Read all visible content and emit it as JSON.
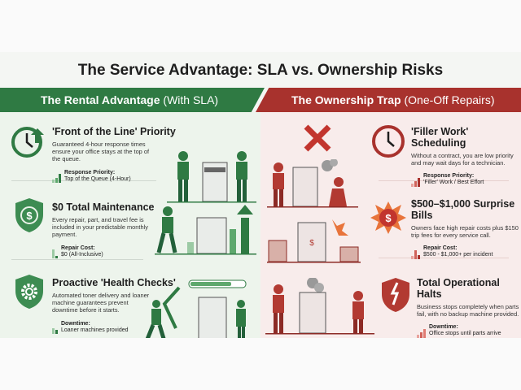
{
  "title": "The Service Advantage: SLA vs. Ownership Risks",
  "colors": {
    "green": "#2f7a43",
    "red": "#a8322d",
    "green_bg": "#edf4ec",
    "red_bg": "#f8eceb"
  },
  "left": {
    "header_bold": "The Rental Advantage",
    "header_light": "(With SLA)",
    "items": [
      {
        "icon": "clock-arrow-icon",
        "title": "'Front of the Line' Priority",
        "body": "Guaranteed 4-hour response times ensure your office stays at the top of the queue.",
        "stat_label": "Response Priority:",
        "stat_value": "Top of the Queue (4-Hour)"
      },
      {
        "icon": "dollar-shield-icon",
        "title": "$0 Total Maintenance",
        "body": "Every repair, part, and travel fee is included in your predictable monthly payment.",
        "stat_label": "Repair Cost:",
        "stat_value": "$0 (All-Inclusive)"
      },
      {
        "icon": "gear-shield-icon",
        "title": "Proactive 'Health Checks'",
        "body": "Automated toner delivery and loaner machine guarantees prevent downtime before it starts.",
        "stat_label": "Downtime:",
        "stat_value": "Loaner machines provided"
      }
    ]
  },
  "right": {
    "header_bold": "The Ownership Trap",
    "header_light": "(One-Off Repairs)",
    "items": [
      {
        "icon": "clock-icon",
        "title": "'Filler Work' Scheduling",
        "body": "Without a contract, you are low priority and may wait days for a technician.",
        "stat_label": "Response Priority:",
        "stat_value": "'Filler' Work / Best Effort"
      },
      {
        "icon": "dollar-burst-icon",
        "title": "$500–$1,000 Surprise Bills",
        "body": "Owners face high repair costs plus $150 trip fees for every service call.",
        "stat_label": "Repair Cost:",
        "stat_value": "$500 - $1,000+ per incident"
      },
      {
        "icon": "broken-shield-icon",
        "title": "Total Operational Halts",
        "body": "Business stops completely when parts fail, with no backup machine provided.",
        "stat_label": "Downtime:",
        "stat_value": "Office stops until parts arrive"
      }
    ]
  }
}
